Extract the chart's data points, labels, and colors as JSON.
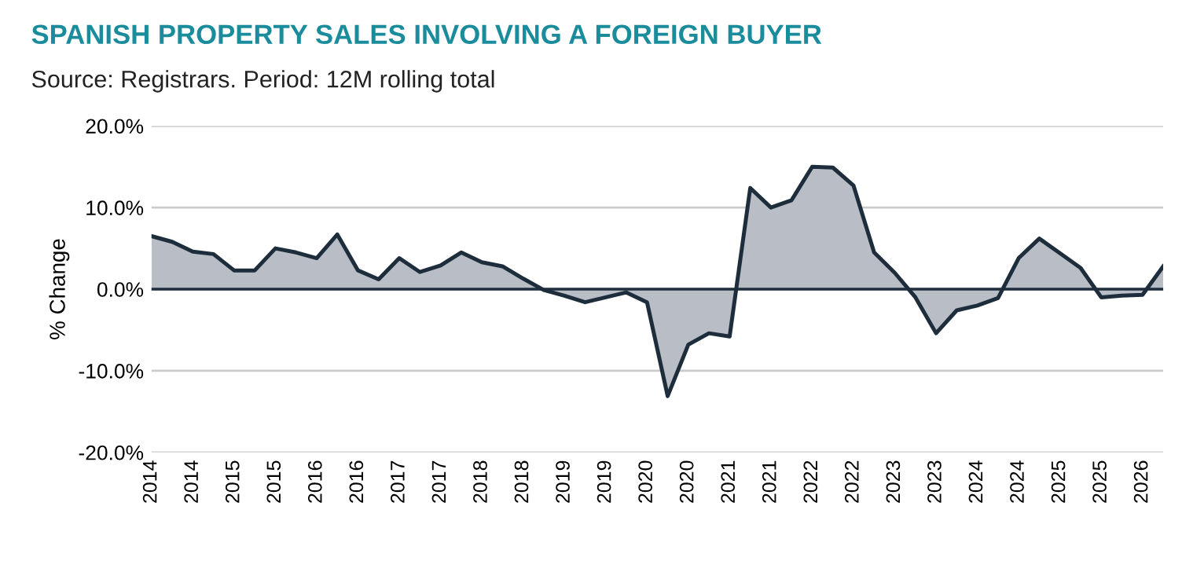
{
  "chart_data": {
    "type": "area",
    "title": "SPANISH PROPERTY SALES INVOLVING A FOREIGN BUYER",
    "subtitle": "Source: Registrars. Period: 12M rolling total",
    "ylabel": "% Change",
    "categories": [
      "2014",
      null,
      "2014",
      null,
      "2015",
      null,
      "2015",
      null,
      "2016",
      null,
      "2016",
      null,
      "2017",
      null,
      "2017",
      null,
      "2018",
      null,
      "2018",
      null,
      "2019",
      null,
      "2019",
      null,
      "2020",
      null,
      "2020",
      null,
      "2021",
      null,
      "2021",
      null,
      "2022",
      null,
      "2022",
      null,
      "2023",
      null,
      "2023",
      null,
      "2024",
      null,
      "2024",
      null,
      "2025",
      null,
      "2025",
      null,
      "2026",
      null
    ],
    "series": [
      {
        "color": "#1e2d3b",
        "values": [
          6.5,
          5.8,
          4.6,
          4.3,
          2.3,
          2.3,
          5.0,
          4.5,
          3.8,
          6.7,
          2.3,
          1.2,
          3.8,
          2.1,
          2.9,
          4.5,
          3.3,
          2.8,
          1.3,
          -0.1,
          -0.8,
          -1.6,
          -1.0,
          -0.4,
          -1.6,
          -13.1,
          -6.8,
          -5.4,
          -5.8,
          12.4,
          10.0,
          10.9,
          15.0,
          14.9,
          12.7,
          4.5,
          2.0,
          -1.0,
          -5.4,
          -2.6,
          -2.0,
          -1.1,
          3.8,
          6.2,
          4.4,
          2.6,
          -1.0,
          -0.8,
          -0.7,
          2.8
        ]
      }
    ],
    "ylim": [
      -20,
      20
    ],
    "yticks": [
      {
        "value": -20,
        "label": "-20.0%"
      },
      {
        "value": -10,
        "label": "-10.0%"
      },
      {
        "value": 0,
        "label": "0.0%"
      },
      {
        "value": 10,
        "label": "10.0%"
      },
      {
        "value": 20,
        "label": "20.0%"
      }
    ],
    "grid": "y",
    "ref_lines": [
      {
        "axis": "y",
        "value": 0,
        "color": "#1e2d3b"
      }
    ]
  }
}
